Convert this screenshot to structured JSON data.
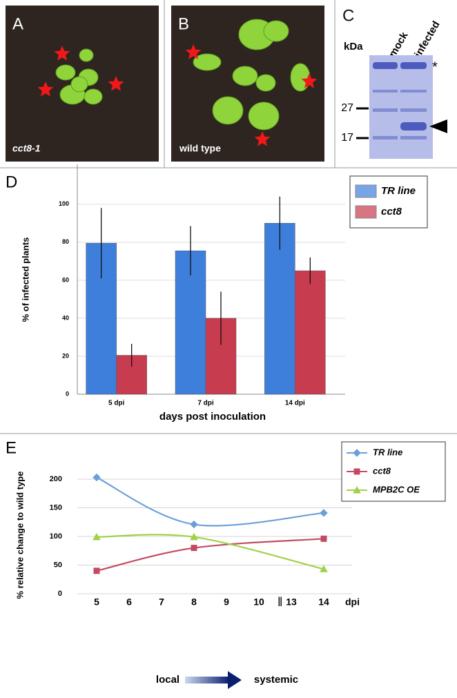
{
  "panels": [
    {
      "label": "A",
      "caption": "cct8-1"
    },
    {
      "label": "B",
      "caption": "wild type"
    }
  ],
  "gel": {
    "label": "C",
    "unit": "kDa",
    "lanes": [
      "mock",
      "infected"
    ],
    "markers": [
      27,
      17
    ],
    "note": "*"
  },
  "chart_data": [
    {
      "type": "bar",
      "panel": "D",
      "ylabel": "% of infected plants",
      "xlabel": "days post inoculation",
      "categories": [
        "5 dpi",
        "7 dpi",
        "14 dpi"
      ],
      "series": [
        {
          "name": "TR line",
          "color": "#3f7fdc",
          "values": [
            79.5,
            75.5,
            90
          ],
          "errors": [
            18.5,
            13,
            14
          ]
        },
        {
          "name": "cct8",
          "color": "#c83c50",
          "values": [
            20.5,
            40,
            65
          ],
          "errors": [
            6,
            14,
            7
          ]
        }
      ],
      "ylim": [
        0,
        121
      ],
      "yticks": [
        0,
        20,
        40,
        60,
        80,
        100
      ],
      "grid": true,
      "legend": "top-right"
    },
    {
      "type": "line",
      "panel": "E",
      "ylabel": "% relative change to wild type",
      "xunit": "dpi",
      "xticks": [
        "5",
        "6",
        "7",
        "8",
        "9",
        "10",
        "13",
        "14"
      ],
      "x": [
        "5",
        "8",
        "14"
      ],
      "series": [
        {
          "name": "TR line",
          "color": "#6a9fd8",
          "marker": "diamond",
          "values": [
            203,
            121,
            141
          ]
        },
        {
          "name": "cct8",
          "color": "#c24a62",
          "marker": "square",
          "values": [
            40,
            80,
            96
          ]
        },
        {
          "name": "MPB2C OE",
          "color": "#9fd24a",
          "marker": "triangle",
          "values": [
            99,
            99,
            43
          ]
        }
      ],
      "ylim": [
        0,
        206
      ],
      "yticks": [
        0,
        50,
        100,
        150,
        200
      ],
      "grid": true,
      "legend": "top-right",
      "annotations": [
        "local",
        "systemic"
      ]
    }
  ]
}
